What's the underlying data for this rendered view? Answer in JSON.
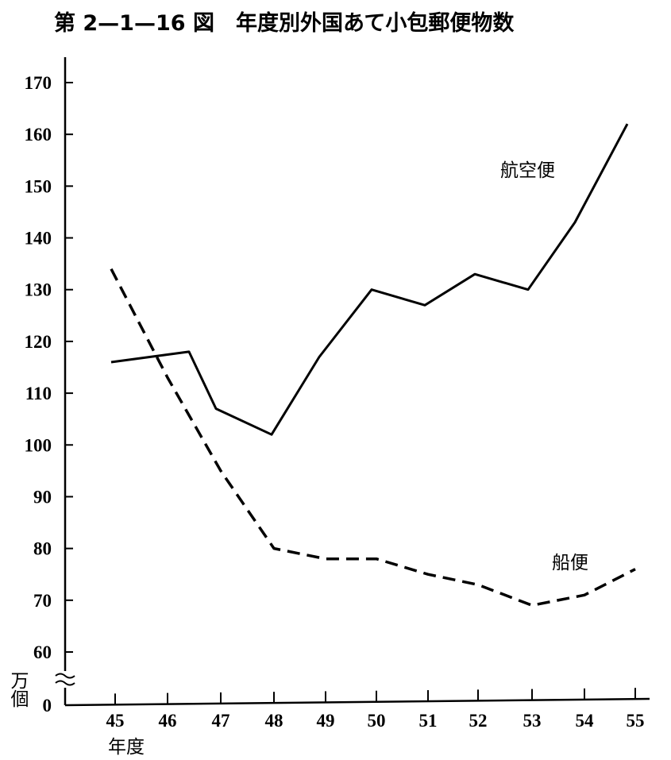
{
  "chart_data": {
    "type": "line",
    "title": "第 2—1—16 図　年度別外国あて小包郵便物数",
    "xlabel": "年度",
    "ylabel": "万個",
    "x": [
      "45",
      "46",
      "47",
      "48",
      "49",
      "50",
      "51",
      "52",
      "53",
      "54",
      "55"
    ],
    "y_ticks": [
      "170",
      "160",
      "150",
      "140",
      "130",
      "120",
      "110",
      "100",
      "90",
      "80",
      "70",
      "60",
      "0"
    ],
    "ylim": [
      60,
      170
    ],
    "y_axis_break": true,
    "grid": false,
    "legend": "inline labels",
    "series": [
      {
        "name": "航空便",
        "line_style": "solid",
        "values": [
          116,
          118,
          107,
          102,
          117,
          130,
          127,
          133,
          130,
          143,
          162
        ]
      },
      {
        "name": "船便",
        "line_style": "dashed",
        "values": [
          134,
          113,
          95,
          80,
          78,
          78,
          75,
          73,
          69,
          71,
          76
        ]
      }
    ]
  },
  "colors": {
    "ink": "#000000",
    "background": "#ffffff"
  }
}
